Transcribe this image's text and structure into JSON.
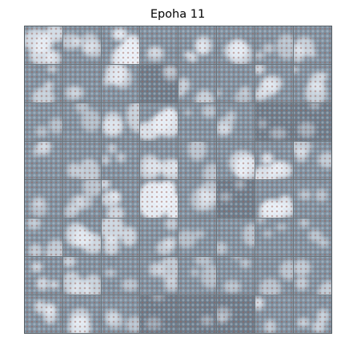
{
  "title": "Epoha 11",
  "grid": {
    "rows": 8,
    "cols": 8
  },
  "tile_name": "generated-sample-tile",
  "colors": {
    "background": "#ffffff",
    "tile_base": "#7f909f",
    "tile_dark": "#6d7c8b",
    "highlight": "#eef3fa",
    "texture_dot": "#965a50",
    "grid_line": "#6b7278"
  }
}
